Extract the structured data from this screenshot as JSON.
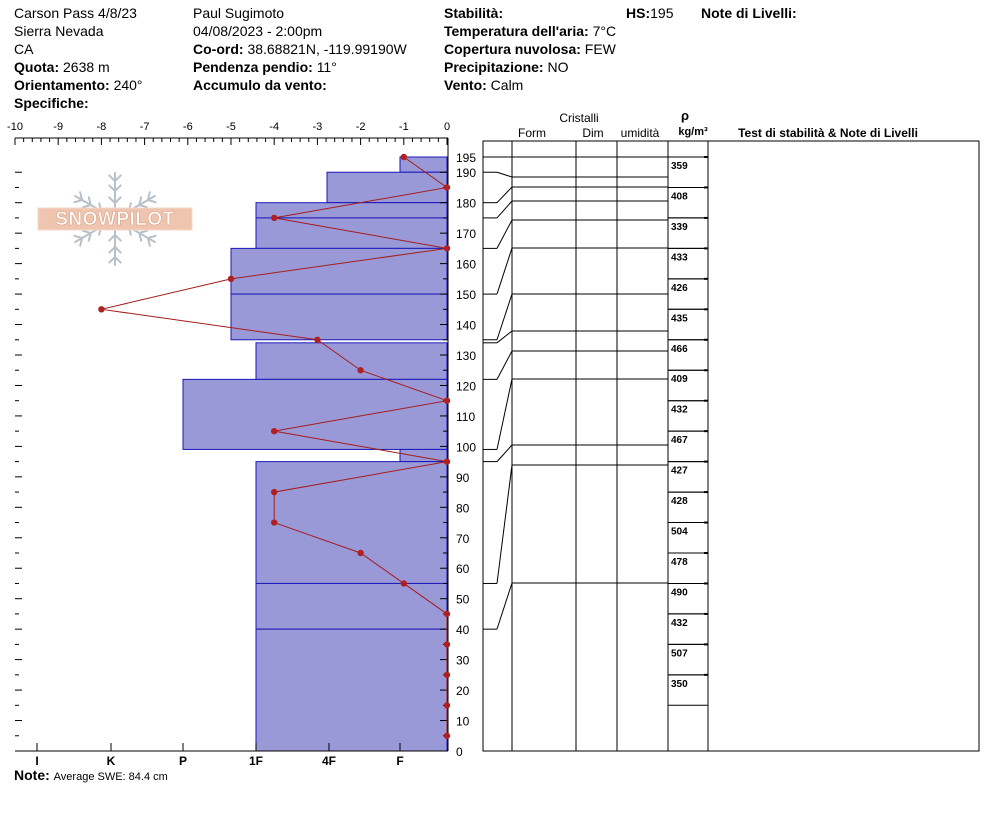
{
  "header": {
    "location": "Carson Pass 4/8/23",
    "range": "Sierra Nevada",
    "state": "CA",
    "elevation_label": "Quota:",
    "elevation_value": "2638 m",
    "aspect_label": "Orientamento:",
    "aspect_value": "240°",
    "specifics_label": "Specifiche:",
    "observer": "Paul Sugimoto",
    "datetime": "04/08/2023 - 2:00pm",
    "coords_label": "Co-ord:",
    "coords_value": "38.68821N, -119.99190W",
    "slope_label": "Pendenza pendio:",
    "slope_value": "11°",
    "wind_loading_label": "Accumulo da vento:",
    "stability_label": "Stabilità:",
    "air_temp_label": "Temperatura dell'aria:",
    "air_temp_value": "7°C",
    "cloud_label": "Copertura nuvolosa:",
    "cloud_value": "FEW",
    "precip_label": "Precipitazione:",
    "precip_value": "NO",
    "wind_label": "Vento:",
    "wind_value": "Calm",
    "hs_label": "HS:",
    "hs_value": "195",
    "layer_notes_label": "Note di Livelli:"
  },
  "footer": {
    "note_label": "Note:",
    "note_value": "Average SWE: 84.4 cm"
  },
  "logo_text": "SNOWPILOT",
  "table": {
    "crystals_header": "Cristalli",
    "form_header": "Form",
    "size_header": "Dim",
    "moisture_header": "umidità",
    "rho_symbol": "ρ",
    "density_unit": "kg/m³",
    "stability_header": "Test di stabilità & Note di Livelli"
  },
  "colors": {
    "layer_fill": "#9a99d8",
    "layer_line": "#1a17b8",
    "temp_line": "#a51c1c",
    "temp_point": "#b02020"
  },
  "chart_data": {
    "type": "snow_profile",
    "temp_axis": {
      "min": -10,
      "max": 0,
      "ticks": [
        "-10",
        "-9",
        "-8",
        "-7",
        "-6",
        "-5",
        "-4",
        "-3",
        "-2",
        "-1",
        "0"
      ]
    },
    "height_axis": {
      "min": 0,
      "max": 195,
      "ticks": [
        "0",
        "10",
        "20",
        "30",
        "40",
        "50",
        "60",
        "70",
        "80",
        "90",
        "100",
        "110",
        "120",
        "130",
        "140",
        "150",
        "160",
        "170",
        "180",
        "190",
        "195"
      ]
    },
    "hardness_scale": [
      "I",
      "K",
      "P",
      "1F",
      "4F",
      "F"
    ],
    "hardness_layers": [
      {
        "top": 195,
        "bottom": 190,
        "hardness": "F"
      },
      {
        "top": 190,
        "bottom": 180,
        "hardness": "4F+"
      },
      {
        "top": 180,
        "bottom": 175,
        "hardness": "1F"
      },
      {
        "top": 175,
        "bottom": 165,
        "hardness": "1F"
      },
      {
        "top": 165,
        "bottom": 150,
        "hardness": "P-"
      },
      {
        "top": 150,
        "bottom": 135,
        "hardness": "P-"
      },
      {
        "top": 134,
        "bottom": 122,
        "hardness": "1F"
      },
      {
        "top": 122,
        "bottom": 99,
        "hardness": "K-"
      },
      {
        "top": 99,
        "bottom": 95,
        "hardness": "F"
      },
      {
        "top": 95,
        "bottom": 55,
        "hardness": "1F"
      },
      {
        "top": 55,
        "bottom": 40,
        "hardness": "1F"
      },
      {
        "top": 40,
        "bottom": 0,
        "hardness": "1F"
      }
    ],
    "temperature_profile": [
      {
        "height": 195,
        "temp": -1
      },
      {
        "height": 185,
        "temp": 0
      },
      {
        "height": 175,
        "temp": -4
      },
      {
        "height": 165,
        "temp": 0
      },
      {
        "height": 155,
        "temp": -5
      },
      {
        "height": 145,
        "temp": -8
      },
      {
        "height": 135,
        "temp": -3
      },
      {
        "height": 125,
        "temp": -2
      },
      {
        "height": 115,
        "temp": 0
      },
      {
        "height": 105,
        "temp": -4
      },
      {
        "height": 95,
        "temp": 0
      },
      {
        "height": 85,
        "temp": -4
      },
      {
        "height": 75,
        "temp": -4
      },
      {
        "height": 65,
        "temp": -2
      },
      {
        "height": 55,
        "temp": -1
      },
      {
        "height": 45,
        "temp": 0
      },
      {
        "height": 35,
        "temp": 0
      },
      {
        "height": 25,
        "temp": 0
      },
      {
        "height": 15,
        "temp": 0
      },
      {
        "height": 5,
        "temp": 0
      }
    ],
    "layer_boundaries": [
      195,
      190,
      180,
      175,
      165,
      150,
      135,
      134,
      122,
      99,
      95,
      55,
      40
    ],
    "density_samples": [
      {
        "top": 195,
        "bottom": 185,
        "value": "359"
      },
      {
        "top": 185,
        "bottom": 175,
        "value": "408"
      },
      {
        "top": 175,
        "bottom": 165,
        "value": "339"
      },
      {
        "top": 165,
        "bottom": 155,
        "value": "433"
      },
      {
        "top": 155,
        "bottom": 145,
        "value": "426"
      },
      {
        "top": 145,
        "bottom": 135,
        "value": "435"
      },
      {
        "top": 135,
        "bottom": 125,
        "value": "466"
      },
      {
        "top": 125,
        "bottom": 115,
        "value": "409"
      },
      {
        "top": 115,
        "bottom": 105,
        "value": "432"
      },
      {
        "top": 105,
        "bottom": 95,
        "value": "467"
      },
      {
        "top": 95,
        "bottom": 85,
        "value": "427"
      },
      {
        "top": 85,
        "bottom": 75,
        "value": "428"
      },
      {
        "top": 75,
        "bottom": 65,
        "value": "504"
      },
      {
        "top": 65,
        "bottom": 55,
        "value": "478"
      },
      {
        "top": 55,
        "bottom": 45,
        "value": "490"
      },
      {
        "top": 45,
        "bottom": 35,
        "value": "432"
      },
      {
        "top": 35,
        "bottom": 25,
        "value": "507"
      },
      {
        "top": 25,
        "bottom": 15,
        "value": "350"
      }
    ]
  }
}
